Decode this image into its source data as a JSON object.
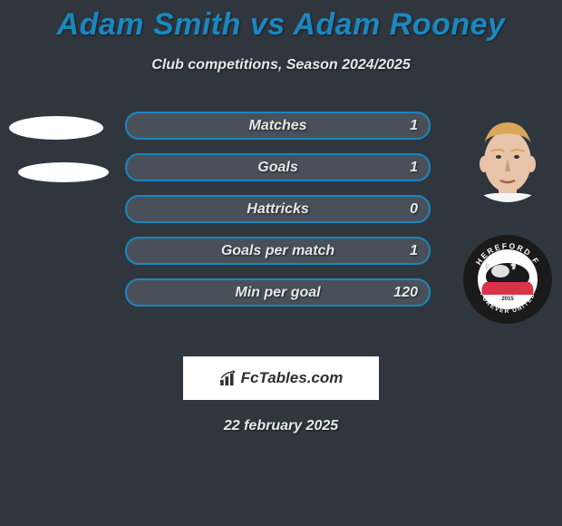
{
  "colors": {
    "background": "#30363e",
    "text_primary": "#e7e8ea",
    "title_color": "#1a87bf",
    "bar_fill": "#4a5059",
    "bar_border": "#1a87bf",
    "avatar_ellipse": "#ffffff",
    "logo_box_bg": "#ffffff"
  },
  "title": "Adam Smith vs Adam Rooney",
  "subtitle": "Club competitions, Season 2024/2025",
  "stats": [
    {
      "label": "Matches",
      "value_right": "1"
    },
    {
      "label": "Goals",
      "value_right": "1"
    },
    {
      "label": "Hattricks",
      "value_right": "0"
    },
    {
      "label": "Goals per match",
      "value_right": "1"
    },
    {
      "label": "Min per goal",
      "value_right": "120"
    }
  ],
  "player_right": {
    "skin_color": "#e8c4a8",
    "hair_color": "#d9a65a",
    "shadow_color": "#c89878"
  },
  "club_right": {
    "ring_color": "#1a1a1a",
    "top_text": "HEREFORD F",
    "bottom_text": "FOREVER UNITED",
    "year": "2015",
    "inner_bg": "#ffffff",
    "bull_body": "#1a1a1a",
    "bull_highlight": "#e0e0e0",
    "accent": "#d9334a"
  },
  "footer_brand": "FcTables.com",
  "date": "22 february 2025"
}
